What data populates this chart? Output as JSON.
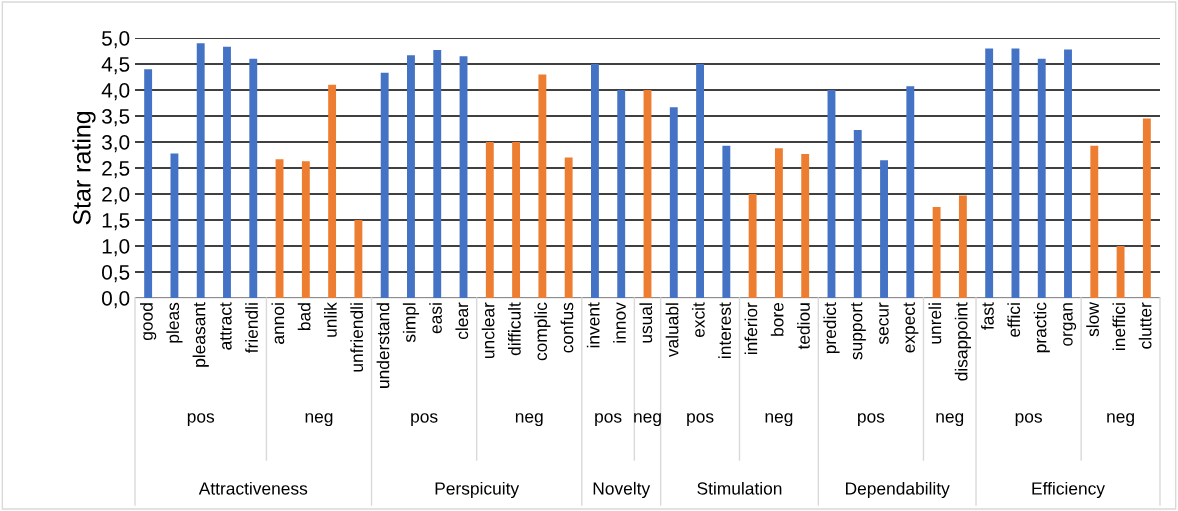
{
  "chart_data": {
    "type": "bar",
    "ylabel": "Star rating",
    "categories": [
      "good",
      "pleas",
      "pleasant",
      "attract",
      "friendli",
      "annoi",
      "bad",
      "unlik",
      "unfriendli",
      "understand",
      "simpl",
      "easi",
      "clear",
      "unclear",
      "difficult",
      "complic",
      "confus",
      "invent",
      "innov",
      "usual",
      "valuabl",
      "excit",
      "interest",
      "inferior",
      "bore",
      "tediou",
      "predict",
      "support",
      "secur",
      "expect",
      "unreli",
      "disappoint",
      "fast",
      "effici",
      "practic",
      "organ",
      "slow",
      "ineffici",
      "clutter"
    ],
    "values": [
      4.4,
      2.78,
      4.9,
      4.83,
      4.6,
      2.67,
      2.63,
      4.1,
      1.5,
      4.33,
      4.67,
      4.77,
      4.65,
      3.0,
      3.0,
      4.3,
      2.7,
      4.5,
      4.0,
      4.0,
      3.67,
      4.5,
      2.93,
      2.0,
      2.88,
      2.77,
      4.0,
      3.23,
      2.65,
      4.07,
      1.75,
      1.97,
      4.8,
      4.8,
      4.6,
      4.78,
      2.93,
      1.0,
      3.45
    ],
    "colors": [
      "#4472c4",
      "#4472c4",
      "#4472c4",
      "#4472c4",
      "#4472c4",
      "#ed7d31",
      "#ed7d31",
      "#ed7d31",
      "#ed7d31",
      "#4472c4",
      "#4472c4",
      "#4472c4",
      "#4472c4",
      "#ed7d31",
      "#ed7d31",
      "#ed7d31",
      "#ed7d31",
      "#4472c4",
      "#4472c4",
      "#ed7d31",
      "#4472c4",
      "#4472c4",
      "#4472c4",
      "#ed7d31",
      "#ed7d31",
      "#ed7d31",
      "#4472c4",
      "#4472c4",
      "#4472c4",
      "#4472c4",
      "#ed7d31",
      "#ed7d31",
      "#4472c4",
      "#4472c4",
      "#4472c4",
      "#4472c4",
      "#ed7d31",
      "#ed7d31",
      "#ed7d31"
    ],
    "ylim": [
      0,
      5
    ],
    "yticks": [
      {
        "value": 0,
        "label": "0,0"
      },
      {
        "value": 0.5,
        "label": "0,5"
      },
      {
        "value": 1,
        "label": "1,0"
      },
      {
        "value": 1.5,
        "label": "1,5"
      },
      {
        "value": 2,
        "label": "2,0"
      },
      {
        "value": 2.5,
        "label": "2,5"
      },
      {
        "value": 3,
        "label": "3,0"
      },
      {
        "value": 3.5,
        "label": "3,5"
      },
      {
        "value": 4,
        "label": "4,0"
      },
      {
        "value": 4.5,
        "label": "4,5"
      },
      {
        "value": 5,
        "label": "5,0"
      }
    ],
    "grid": "y",
    "legend": false,
    "annotations": [
      "pos",
      "neg",
      "pos",
      "neg",
      "pos",
      "neg",
      "pos",
      "neg",
      "pos",
      "neg",
      "pos",
      "neg",
      "Attractiveness",
      "Perspicuity",
      "Novelty",
      "Stimulation",
      "Dependability",
      "Efficiency"
    ]
  }
}
